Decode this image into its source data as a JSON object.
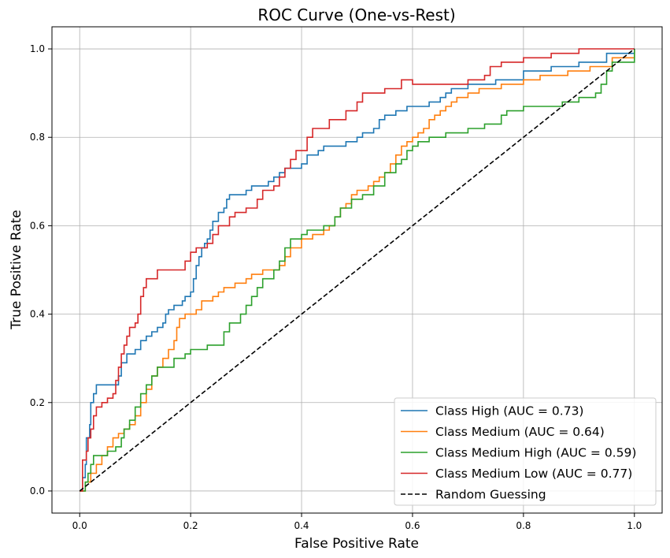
{
  "chart_data": {
    "type": "line",
    "title": "ROC Curve (One-vs-Rest)",
    "xlabel": "False Positive Rate",
    "ylabel": "True Positive Rate",
    "xlim": [
      -0.05,
      1.05
    ],
    "ylim": [
      -0.05,
      1.05
    ],
    "xticks": [
      "0.0",
      "0.2",
      "0.4",
      "0.6",
      "0.8",
      "1.0"
    ],
    "yticks": [
      "0.0",
      "0.2",
      "0.4",
      "0.6",
      "0.8",
      "1.0"
    ],
    "grid": true,
    "legend_position": "lower-right",
    "series": [
      {
        "name": "Class High (AUC = 0.73)",
        "color": "#1f77b4",
        "points": [
          [
            0,
            0
          ],
          [
            0.005,
            0.03
          ],
          [
            0.01,
            0.06
          ],
          [
            0.012,
            0.12
          ],
          [
            0.018,
            0.15
          ],
          [
            0.02,
            0.2
          ],
          [
            0.025,
            0.22
          ],
          [
            0.03,
            0.24
          ],
          [
            0.065,
            0.24
          ],
          [
            0.07,
            0.26
          ],
          [
            0.075,
            0.29
          ],
          [
            0.085,
            0.31
          ],
          [
            0.1,
            0.32
          ],
          [
            0.11,
            0.34
          ],
          [
            0.12,
            0.35
          ],
          [
            0.13,
            0.36
          ],
          [
            0.14,
            0.37
          ],
          [
            0.15,
            0.38
          ],
          [
            0.155,
            0.4
          ],
          [
            0.16,
            0.41
          ],
          [
            0.17,
            0.42
          ],
          [
            0.185,
            0.43
          ],
          [
            0.19,
            0.44
          ],
          [
            0.2,
            0.45
          ],
          [
            0.205,
            0.48
          ],
          [
            0.21,
            0.51
          ],
          [
            0.215,
            0.53
          ],
          [
            0.22,
            0.55
          ],
          [
            0.225,
            0.56
          ],
          [
            0.23,
            0.57
          ],
          [
            0.235,
            0.59
          ],
          [
            0.24,
            0.61
          ],
          [
            0.25,
            0.63
          ],
          [
            0.26,
            0.64
          ],
          [
            0.265,
            0.66
          ],
          [
            0.27,
            0.67
          ],
          [
            0.3,
            0.68
          ],
          [
            0.31,
            0.69
          ],
          [
            0.34,
            0.7
          ],
          [
            0.35,
            0.71
          ],
          [
            0.36,
            0.72
          ],
          [
            0.37,
            0.73
          ],
          [
            0.4,
            0.74
          ],
          [
            0.41,
            0.76
          ],
          [
            0.43,
            0.77
          ],
          [
            0.44,
            0.78
          ],
          [
            0.48,
            0.79
          ],
          [
            0.5,
            0.8
          ],
          [
            0.51,
            0.81
          ],
          [
            0.53,
            0.82
          ],
          [
            0.54,
            0.84
          ],
          [
            0.55,
            0.85
          ],
          [
            0.57,
            0.86
          ],
          [
            0.59,
            0.87
          ],
          [
            0.63,
            0.88
          ],
          [
            0.65,
            0.89
          ],
          [
            0.66,
            0.9
          ],
          [
            0.67,
            0.91
          ],
          [
            0.7,
            0.92
          ],
          [
            0.75,
            0.93
          ],
          [
            0.8,
            0.95
          ],
          [
            0.85,
            0.96
          ],
          [
            0.9,
            0.97
          ],
          [
            0.95,
            0.99
          ],
          [
            1,
            1
          ]
        ]
      },
      {
        "name": "Class Medium (AUC = 0.64)",
        "color": "#ff7f0e",
        "points": [
          [
            0,
            0
          ],
          [
            0.01,
            0.02
          ],
          [
            0.02,
            0.04
          ],
          [
            0.03,
            0.06
          ],
          [
            0.04,
            0.08
          ],
          [
            0.05,
            0.1
          ],
          [
            0.06,
            0.12
          ],
          [
            0.07,
            0.13
          ],
          [
            0.08,
            0.14
          ],
          [
            0.09,
            0.15
          ],
          [
            0.1,
            0.17
          ],
          [
            0.11,
            0.2
          ],
          [
            0.12,
            0.23
          ],
          [
            0.13,
            0.26
          ],
          [
            0.14,
            0.28
          ],
          [
            0.15,
            0.3
          ],
          [
            0.16,
            0.32
          ],
          [
            0.17,
            0.34
          ],
          [
            0.175,
            0.37
          ],
          [
            0.18,
            0.39
          ],
          [
            0.19,
            0.4
          ],
          [
            0.21,
            0.41
          ],
          [
            0.22,
            0.43
          ],
          [
            0.24,
            0.44
          ],
          [
            0.25,
            0.45
          ],
          [
            0.26,
            0.46
          ],
          [
            0.28,
            0.47
          ],
          [
            0.3,
            0.48
          ],
          [
            0.31,
            0.49
          ],
          [
            0.33,
            0.5
          ],
          [
            0.36,
            0.51
          ],
          [
            0.37,
            0.53
          ],
          [
            0.38,
            0.55
          ],
          [
            0.4,
            0.57
          ],
          [
            0.42,
            0.58
          ],
          [
            0.44,
            0.59
          ],
          [
            0.45,
            0.6
          ],
          [
            0.46,
            0.62
          ],
          [
            0.47,
            0.64
          ],
          [
            0.48,
            0.65
          ],
          [
            0.49,
            0.67
          ],
          [
            0.5,
            0.68
          ],
          [
            0.52,
            0.69
          ],
          [
            0.53,
            0.7
          ],
          [
            0.54,
            0.71
          ],
          [
            0.55,
            0.72
          ],
          [
            0.56,
            0.74
          ],
          [
            0.57,
            0.76
          ],
          [
            0.58,
            0.78
          ],
          [
            0.59,
            0.79
          ],
          [
            0.6,
            0.8
          ],
          [
            0.61,
            0.81
          ],
          [
            0.62,
            0.82
          ],
          [
            0.63,
            0.84
          ],
          [
            0.64,
            0.85
          ],
          [
            0.65,
            0.86
          ],
          [
            0.66,
            0.87
          ],
          [
            0.67,
            0.88
          ],
          [
            0.68,
            0.89
          ],
          [
            0.7,
            0.9
          ],
          [
            0.72,
            0.91
          ],
          [
            0.76,
            0.92
          ],
          [
            0.8,
            0.93
          ],
          [
            0.83,
            0.94
          ],
          [
            0.88,
            0.95
          ],
          [
            0.92,
            0.96
          ],
          [
            0.96,
            0.98
          ],
          [
            1,
            1
          ]
        ]
      },
      {
        "name": "Class Medium High (AUC = 0.59)",
        "color": "#2ca02c",
        "points": [
          [
            0,
            0
          ],
          [
            0.01,
            0.02
          ],
          [
            0.015,
            0.04
          ],
          [
            0.02,
            0.06
          ],
          [
            0.025,
            0.08
          ],
          [
            0.05,
            0.09
          ],
          [
            0.065,
            0.1
          ],
          [
            0.075,
            0.12
          ],
          [
            0.08,
            0.14
          ],
          [
            0.09,
            0.16
          ],
          [
            0.1,
            0.19
          ],
          [
            0.11,
            0.22
          ],
          [
            0.12,
            0.24
          ],
          [
            0.13,
            0.26
          ],
          [
            0.14,
            0.28
          ],
          [
            0.17,
            0.3
          ],
          [
            0.19,
            0.31
          ],
          [
            0.2,
            0.32
          ],
          [
            0.23,
            0.33
          ],
          [
            0.26,
            0.36
          ],
          [
            0.27,
            0.38
          ],
          [
            0.29,
            0.4
          ],
          [
            0.3,
            0.42
          ],
          [
            0.31,
            0.44
          ],
          [
            0.32,
            0.46
          ],
          [
            0.33,
            0.48
          ],
          [
            0.35,
            0.5
          ],
          [
            0.36,
            0.52
          ],
          [
            0.37,
            0.55
          ],
          [
            0.38,
            0.57
          ],
          [
            0.4,
            0.58
          ],
          [
            0.41,
            0.59
          ],
          [
            0.44,
            0.6
          ],
          [
            0.46,
            0.62
          ],
          [
            0.47,
            0.64
          ],
          [
            0.49,
            0.66
          ],
          [
            0.51,
            0.67
          ],
          [
            0.53,
            0.69
          ],
          [
            0.55,
            0.72
          ],
          [
            0.57,
            0.74
          ],
          [
            0.58,
            0.75
          ],
          [
            0.59,
            0.77
          ],
          [
            0.6,
            0.78
          ],
          [
            0.61,
            0.79
          ],
          [
            0.63,
            0.8
          ],
          [
            0.66,
            0.81
          ],
          [
            0.7,
            0.82
          ],
          [
            0.73,
            0.83
          ],
          [
            0.76,
            0.85
          ],
          [
            0.77,
            0.86
          ],
          [
            0.8,
            0.87
          ],
          [
            0.87,
            0.88
          ],
          [
            0.9,
            0.89
          ],
          [
            0.93,
            0.9
          ],
          [
            0.94,
            0.92
          ],
          [
            0.95,
            0.95
          ],
          [
            0.96,
            0.97
          ],
          [
            1,
            1
          ]
        ]
      },
      {
        "name": "Class Medium Low (AUC = 0.77)",
        "color": "#d62728",
        "points": [
          [
            0,
            0
          ],
          [
            0.005,
            0.07
          ],
          [
            0.012,
            0.09
          ],
          [
            0.015,
            0.12
          ],
          [
            0.02,
            0.14
          ],
          [
            0.025,
            0.17
          ],
          [
            0.03,
            0.19
          ],
          [
            0.04,
            0.2
          ],
          [
            0.05,
            0.21
          ],
          [
            0.06,
            0.22
          ],
          [
            0.065,
            0.25
          ],
          [
            0.07,
            0.28
          ],
          [
            0.075,
            0.31
          ],
          [
            0.08,
            0.33
          ],
          [
            0.085,
            0.35
          ],
          [
            0.09,
            0.37
          ],
          [
            0.1,
            0.38
          ],
          [
            0.105,
            0.4
          ],
          [
            0.11,
            0.44
          ],
          [
            0.115,
            0.46
          ],
          [
            0.12,
            0.48
          ],
          [
            0.14,
            0.5
          ],
          [
            0.19,
            0.52
          ],
          [
            0.2,
            0.54
          ],
          [
            0.21,
            0.55
          ],
          [
            0.23,
            0.56
          ],
          [
            0.24,
            0.58
          ],
          [
            0.25,
            0.6
          ],
          [
            0.27,
            0.62
          ],
          [
            0.28,
            0.63
          ],
          [
            0.3,
            0.64
          ],
          [
            0.32,
            0.66
          ],
          [
            0.33,
            0.68
          ],
          [
            0.35,
            0.69
          ],
          [
            0.36,
            0.71
          ],
          [
            0.37,
            0.73
          ],
          [
            0.38,
            0.75
          ],
          [
            0.39,
            0.77
          ],
          [
            0.41,
            0.8
          ],
          [
            0.42,
            0.82
          ],
          [
            0.45,
            0.84
          ],
          [
            0.48,
            0.86
          ],
          [
            0.5,
            0.88
          ],
          [
            0.51,
            0.9
          ],
          [
            0.55,
            0.91
          ],
          [
            0.58,
            0.93
          ],
          [
            0.6,
            0.92
          ],
          [
            0.65,
            0.92
          ],
          [
            0.7,
            0.93
          ],
          [
            0.73,
            0.94
          ],
          [
            0.74,
            0.96
          ],
          [
            0.76,
            0.97
          ],
          [
            0.8,
            0.98
          ],
          [
            0.85,
            0.99
          ],
          [
            0.9,
            1
          ],
          [
            1,
            1
          ]
        ]
      },
      {
        "name": "Random Guessing",
        "color": "#000000",
        "dashed": true,
        "points": [
          [
            0,
            0
          ],
          [
            1,
            1
          ]
        ]
      }
    ]
  }
}
